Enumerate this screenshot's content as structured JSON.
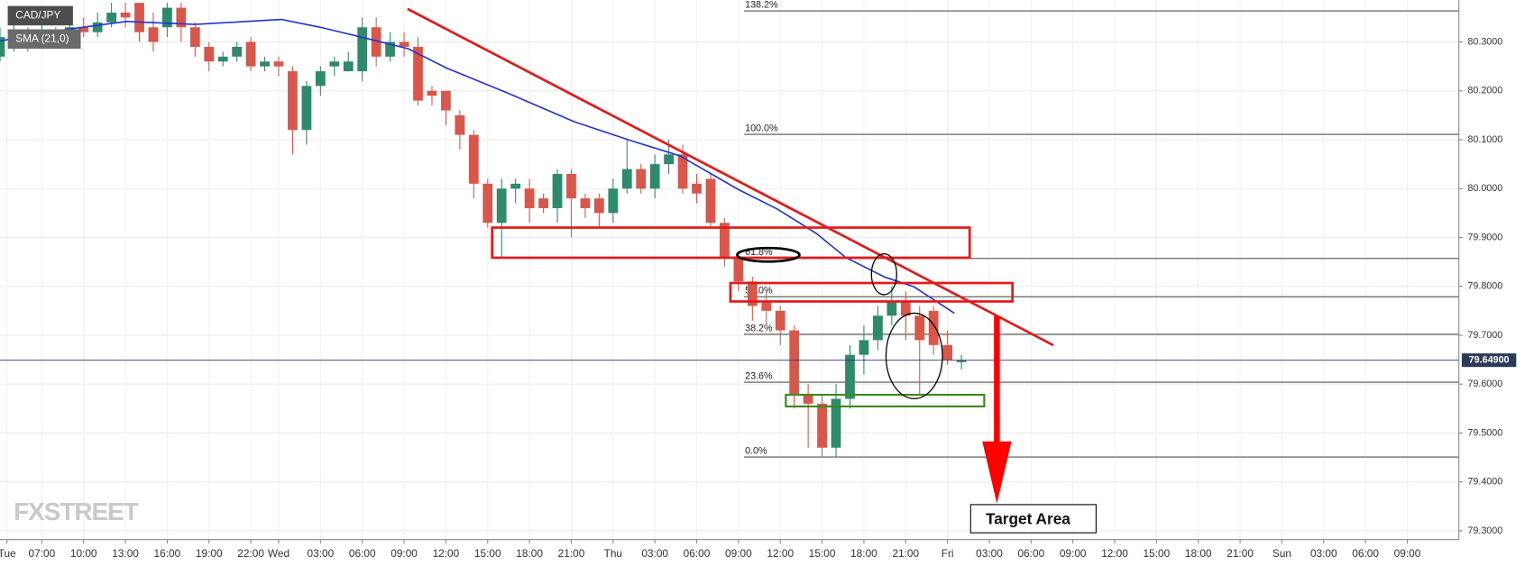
{
  "chart_data": {
    "type": "candlestick",
    "title": "CAD/JPY",
    "candles": {
      "x": [
        4,
        5,
        6,
        7,
        8,
        9,
        10,
        11,
        12,
        13,
        14,
        15,
        16,
        17,
        18,
        19,
        20,
        21,
        22,
        23,
        24,
        25,
        26,
        27,
        28,
        29,
        30,
        31,
        32,
        33,
        34,
        35,
        36,
        37,
        38,
        39,
        40,
        41,
        42,
        43,
        44,
        45,
        46,
        47,
        48,
        49,
        50,
        51,
        52,
        53,
        54,
        55,
        56,
        57,
        58,
        59,
        60,
        61,
        62,
        63,
        64,
        65,
        66,
        67,
        68,
        69,
        70,
        71,
        72,
        73
      ],
      "open": [
        80.27,
        80.29,
        80.31,
        80.3,
        80.32,
        80.31,
        80.33,
        80.32,
        80.34,
        80.36,
        80.38,
        80.33,
        80.33,
        80.37,
        80.33,
        80.29,
        80.26,
        80.27,
        80.3,
        80.25,
        80.26,
        80.24,
        80.12,
        80.21,
        80.25,
        80.24,
        80.24,
        80.33,
        80.27,
        80.3,
        80.29,
        80.2,
        80.2,
        80.15,
        80.11,
        80.01,
        79.93,
        80.0,
        80.0,
        79.98,
        79.96,
        80.03,
        79.98,
        79.98,
        79.95,
        80.0,
        80.04,
        80.0,
        80.05,
        80.07,
        80.01,
        80.02,
        79.93,
        79.86,
        79.81,
        79.77,
        79.75,
        79.71,
        79.58,
        79.56,
        79.47,
        79.57,
        79.66,
        79.69,
        79.74,
        79.77,
        79.74,
        79.75,
        79.68,
        79.645
      ],
      "high": [
        80.33,
        80.34,
        80.33,
        80.34,
        80.33,
        80.35,
        80.35,
        80.36,
        80.38,
        80.38,
        80.38,
        80.36,
        80.38,
        80.38,
        80.34,
        80.3,
        80.28,
        80.3,
        80.31,
        80.27,
        80.27,
        80.25,
        80.22,
        80.25,
        80.27,
        80.28,
        80.35,
        80.35,
        80.32,
        80.32,
        80.31,
        80.21,
        80.2,
        80.16,
        80.12,
        80.02,
        80.02,
        80.02,
        80.02,
        79.99,
        80.04,
        80.04,
        79.99,
        79.99,
        80.02,
        80.1,
        80.05,
        80.07,
        80.1,
        80.09,
        80.03,
        80.03,
        79.94,
        79.87,
        79.82,
        79.79,
        79.76,
        79.72,
        79.6,
        79.58,
        79.6,
        79.68,
        79.72,
        79.76,
        79.8,
        79.79,
        79.76,
        79.76,
        79.71,
        79.66
      ],
      "low": [
        80.26,
        80.28,
        80.28,
        80.29,
        80.29,
        80.3,
        80.31,
        80.31,
        80.33,
        80.33,
        80.3,
        80.28,
        80.31,
        80.3,
        80.27,
        80.24,
        80.25,
        80.26,
        80.24,
        80.24,
        80.23,
        80.07,
        80.09,
        80.19,
        80.23,
        80.24,
        80.22,
        80.25,
        80.26,
        80.27,
        80.17,
        80.17,
        80.13,
        80.08,
        79.98,
        79.92,
        79.86,
        79.97,
        79.93,
        79.95,
        79.93,
        79.9,
        79.94,
        79.92,
        79.93,
        79.99,
        79.99,
        79.98,
        80.03,
        79.99,
        79.97,
        79.92,
        79.84,
        79.79,
        79.73,
        79.72,
        79.68,
        79.55,
        79.47,
        79.45,
        79.45,
        79.55,
        79.62,
        79.67,
        79.72,
        79.69,
        79.58,
        79.66,
        79.64,
        79.63
      ],
      "close": [
        80.31,
        80.31,
        80.3,
        80.32,
        80.31,
        80.33,
        80.32,
        80.34,
        80.36,
        80.35,
        80.32,
        80.3,
        80.37,
        80.33,
        80.29,
        80.26,
        80.27,
        80.29,
        80.25,
        80.26,
        80.25,
        80.12,
        80.21,
        80.24,
        80.26,
        80.26,
        80.33,
        80.27,
        80.3,
        80.29,
        80.18,
        80.19,
        80.16,
        80.11,
        80.01,
        79.93,
        80.0,
        80.01,
        79.96,
        79.96,
        80.03,
        79.98,
        79.96,
        79.95,
        80.0,
        80.04,
        80.0,
        80.05,
        80.07,
        80.0,
        79.99,
        79.93,
        79.86,
        79.81,
        79.76,
        79.75,
        79.71,
        79.58,
        79.56,
        79.47,
        79.57,
        79.66,
        79.69,
        79.74,
        79.77,
        79.74,
        79.69,
        79.68,
        79.65,
        79.649
      ],
      "up_color": "#2f8a6c",
      "down_color": "#d9574a"
    },
    "series": [
      {
        "name": "SMA (21,0)",
        "color": "#2233d6",
        "x": [
          4,
          8.9,
          13.1,
          18,
          24.2,
          27,
          30.5,
          33.3,
          36.1,
          40.3,
          45.2,
          49.4,
          52.8,
          57,
          59.8,
          62.6,
          64.7,
          67.5,
          69.6,
          72.5
        ],
        "values": [
          80.302,
          80.326,
          80.342,
          80.336,
          80.346,
          80.33,
          80.306,
          80.286,
          80.246,
          80.197,
          80.137,
          80.097,
          80.067,
          79.998,
          79.958,
          79.908,
          79.859,
          79.819,
          79.799,
          79.745
        ]
      }
    ],
    "xlim": [
      4,
      108.7
    ],
    "xticks": [
      {
        "value": 4.5,
        "label": "Tue"
      },
      {
        "value": 7,
        "label": "07:00"
      },
      {
        "value": 10,
        "label": "10:00"
      },
      {
        "value": 13,
        "label": "13:00"
      },
      {
        "value": 16,
        "label": "16:00"
      },
      {
        "value": 19,
        "label": "19:00"
      },
      {
        "value": 22,
        "label": "22:00"
      },
      {
        "value": 24,
        "label": "Wed"
      },
      {
        "value": 27,
        "label": "03:00"
      },
      {
        "value": 30,
        "label": "06:00"
      },
      {
        "value": 33,
        "label": "09:00"
      },
      {
        "value": 36,
        "label": "12:00"
      },
      {
        "value": 39,
        "label": "15:00"
      },
      {
        "value": 42,
        "label": "18:00"
      },
      {
        "value": 45,
        "label": "21:00"
      },
      {
        "value": 48,
        "label": "Thu"
      },
      {
        "value": 51,
        "label": "03:00"
      },
      {
        "value": 54,
        "label": "06:00"
      },
      {
        "value": 57,
        "label": "09:00"
      },
      {
        "value": 60,
        "label": "12:00"
      },
      {
        "value": 63,
        "label": "15:00"
      },
      {
        "value": 66,
        "label": "18:00"
      },
      {
        "value": 69,
        "label": "21:00"
      },
      {
        "value": 72,
        "label": "Fri"
      },
      {
        "value": 75,
        "label": "03:00"
      },
      {
        "value": 78,
        "label": "06:00"
      },
      {
        "value": 81,
        "label": "09:00"
      },
      {
        "value": 84,
        "label": "12:00"
      },
      {
        "value": 87,
        "label": "15:00"
      },
      {
        "value": 90,
        "label": "18:00"
      },
      {
        "value": 93,
        "label": "21:00"
      },
      {
        "value": 96,
        "label": "Sun"
      },
      {
        "value": 99,
        "label": "03:00"
      },
      {
        "value": 102,
        "label": "06:00"
      },
      {
        "value": 105,
        "label": "09:00"
      }
    ],
    "ylim": [
      79.282,
      80.3855
    ],
    "yticks": [
      {
        "value": 79.3,
        "label": "79.3000"
      },
      {
        "value": 79.4,
        "label": "79.4000"
      },
      {
        "value": 79.5,
        "label": "79.5000"
      },
      {
        "value": 79.6,
        "label": "79.6000"
      },
      {
        "value": 79.7,
        "label": "79.7000"
      },
      {
        "value": 79.8,
        "label": "79.8000"
      },
      {
        "value": 79.9,
        "label": "79.9000"
      },
      {
        "value": 80.0,
        "label": "80.0000"
      },
      {
        "value": 80.1,
        "label": "80.1000"
      },
      {
        "value": 80.2,
        "label": "80.2000"
      },
      {
        "value": 80.3,
        "label": "80.3000"
      }
    ],
    "grid": true,
    "last_price": {
      "value": 79.649,
      "label": "79.64900"
    },
    "fib_levels": [
      {
        "value": 80.3636,
        "label": "138.2%"
      },
      {
        "value": 80.111,
        "label": "100.0%"
      },
      {
        "value": 79.857,
        "label": "61.8%"
      },
      {
        "value": 79.779,
        "label": "50.0%"
      },
      {
        "value": 79.702,
        "label": "38.2%"
      },
      {
        "value": 79.604,
        "label": "23.6%"
      },
      {
        "value": 79.451,
        "label": "0.0%"
      }
    ],
    "target_label": "Target Area",
    "watermark": "FXSTREET"
  }
}
